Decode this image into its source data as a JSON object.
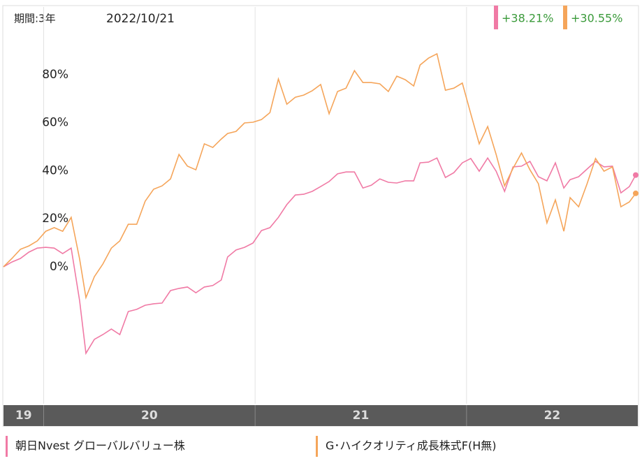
{
  "chart_data": {
    "type": "line",
    "period_label": "期間:3年",
    "date_label": "2022/10/21",
    "xlim": [
      2019.81,
      2022.81
    ],
    "xticks": [
      {
        "value": 2019,
        "label": "19"
      },
      {
        "value": 2020,
        "label": "20"
      },
      {
        "value": 2021,
        "label": "21"
      },
      {
        "value": 2022,
        "label": "22"
      }
    ],
    "ylim": [
      -57,
      98
    ],
    "yticks": [
      {
        "value": 0,
        "label": "0%"
      },
      {
        "value": 20,
        "label": "20%"
      },
      {
        "value": 40,
        "label": "40%"
      },
      {
        "value": 60,
        "label": "60%"
      },
      {
        "value": 80,
        "label": "80%"
      }
    ],
    "x": [
      2019.81,
      2019.85,
      2019.89,
      2019.93,
      2019.97,
      2020.01,
      2020.05,
      2020.09,
      2020.13,
      2020.17,
      2020.2,
      2020.24,
      2020.28,
      2020.32,
      2020.36,
      2020.4,
      2020.44,
      2020.48,
      2020.52,
      2020.56,
      2020.6,
      2020.64,
      2020.68,
      2020.72,
      2020.76,
      2020.8,
      2020.84,
      2020.87,
      2020.91,
      2020.95,
      2020.99,
      2021.03,
      2021.07,
      2021.11,
      2021.15,
      2021.19,
      2021.23,
      2021.27,
      2021.31,
      2021.35,
      2021.39,
      2021.43,
      2021.47,
      2021.51,
      2021.55,
      2021.59,
      2021.63,
      2021.67,
      2021.71,
      2021.75,
      2021.78,
      2021.82,
      2021.86,
      2021.9,
      2021.94,
      2021.98,
      2022.02,
      2022.06,
      2022.1,
      2022.14,
      2022.18,
      2022.22,
      2022.26,
      2022.3,
      2022.34,
      2022.38,
      2022.42,
      2022.46,
      2022.49,
      2022.53,
      2022.57,
      2022.61,
      2022.65,
      2022.69,
      2022.73,
      2022.77,
      2022.8
    ],
    "series": [
      {
        "name": "朝日Nvest グローバルバリュー株",
        "color": "#f07aa5",
        "change": "+38.21%",
        "values": [
          0.0,
          2.0,
          3.5,
          6.1,
          7.8,
          8.1,
          7.8,
          5.5,
          7.8,
          -14.2,
          -36.0,
          -30.2,
          -28.2,
          -25.9,
          -28.2,
          -18.6,
          -17.7,
          -16.0,
          -15.4,
          -15.1,
          -9.9,
          -9.0,
          -8.4,
          -10.8,
          -8.4,
          -7.8,
          -5.5,
          4.1,
          7.0,
          8.1,
          9.9,
          15.1,
          16.3,
          20.6,
          25.9,
          29.9,
          30.2,
          31.4,
          33.4,
          35.5,
          38.7,
          39.5,
          39.5,
          32.8,
          34.0,
          36.6,
          35.2,
          34.9,
          35.8,
          35.8,
          43.3,
          43.6,
          45.3,
          37.2,
          39.2,
          43.3,
          45.1,
          39.8,
          45.3,
          39.8,
          31.4,
          41.6,
          41.9,
          43.9,
          37.5,
          35.8,
          43.3,
          32.8,
          36.3,
          37.5,
          40.7,
          43.9,
          41.6,
          41.9,
          30.8,
          33.4,
          38.2
        ]
      },
      {
        "name": "G･ハイクオリティ成長株式F(H無)",
        "color": "#f5a55a",
        "change": "+30.55%",
        "values": [
          0.0,
          3.5,
          7.3,
          8.7,
          10.8,
          14.8,
          16.3,
          14.8,
          20.6,
          3.2,
          -12.8,
          -4.1,
          1.2,
          7.8,
          10.8,
          17.7,
          17.7,
          27.3,
          32.3,
          33.7,
          36.6,
          46.8,
          41.9,
          40.4,
          51.2,
          49.7,
          53.2,
          55.5,
          56.4,
          59.9,
          60.2,
          61.3,
          64.2,
          78.2,
          67.7,
          70.6,
          71.5,
          73.3,
          75.9,
          63.7,
          73.0,
          74.4,
          81.7,
          76.7,
          76.7,
          76.2,
          73.0,
          79.4,
          77.9,
          75.3,
          84.0,
          86.9,
          88.7,
          73.5,
          74.4,
          76.5,
          63.7,
          51.2,
          58.4,
          46.8,
          33.7,
          41.0,
          47.4,
          40.4,
          34.6,
          18.3,
          27.9,
          14.8,
          28.8,
          25.0,
          34.6,
          45.1,
          39.8,
          41.6,
          25.0,
          27.0,
          30.6
        ]
      }
    ]
  }
}
